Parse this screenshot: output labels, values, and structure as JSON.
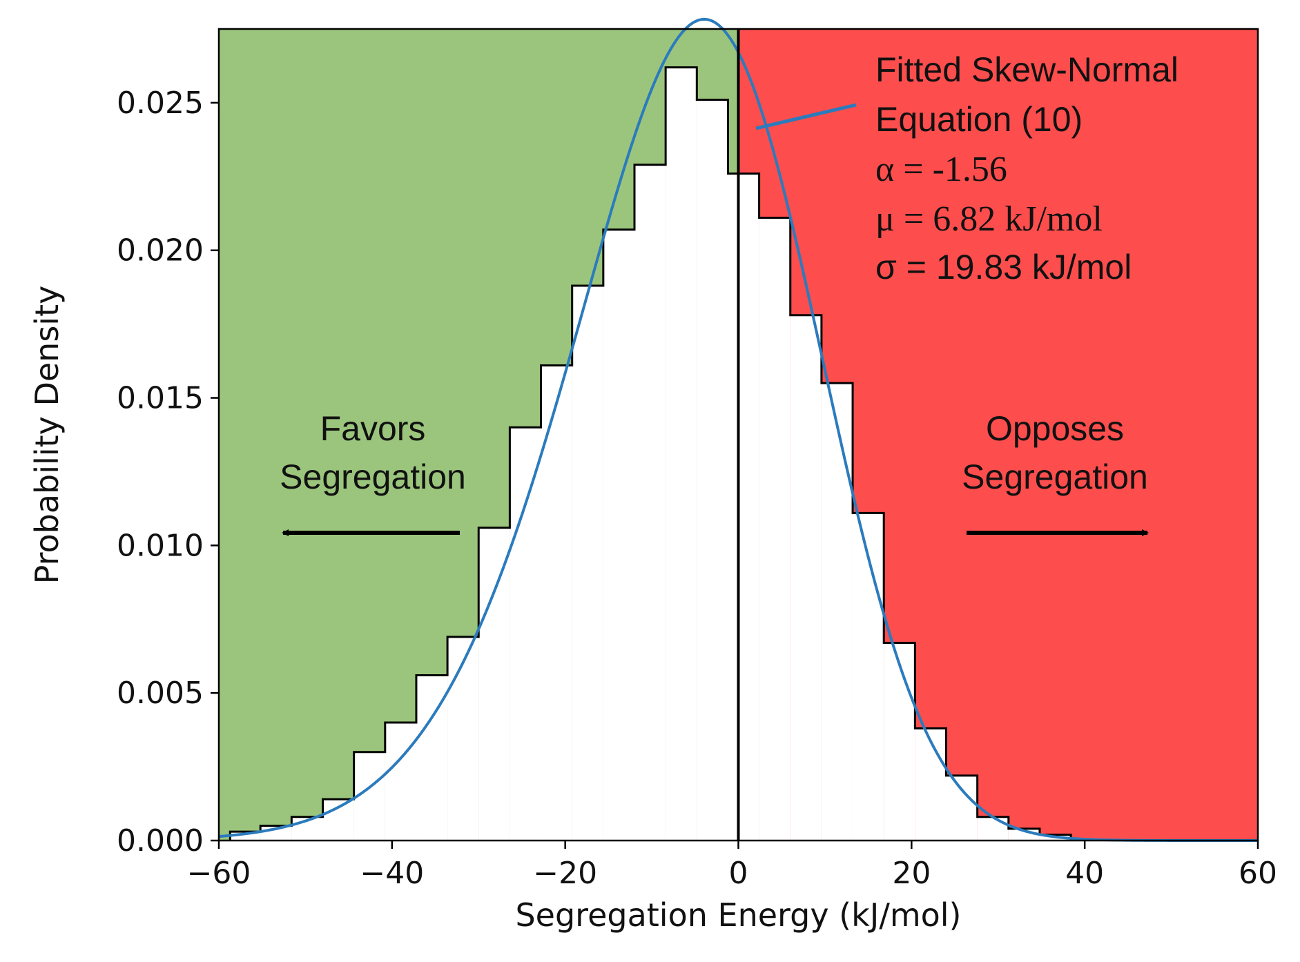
{
  "colors": {
    "favor_region": "#9bc57c",
    "oppose_region": "#fe4d4d",
    "curve": "#2b7bbd",
    "hist_fill": "#ffffff",
    "hist_edge": "#000000",
    "axis": "#000000"
  },
  "chart_data": {
    "type": "histogram",
    "title": "",
    "xlabel": "Segregation Energy (kJ/mol)",
    "ylabel": "Probability Density",
    "xlim": [
      -60,
      60
    ],
    "ylim": [
      0,
      0.0275
    ],
    "xticks": [
      -60,
      -40,
      -20,
      0,
      20,
      40,
      60
    ],
    "xtick_labels": [
      "−60",
      "−40",
      "−20",
      "0",
      "20",
      "40",
      "60"
    ],
    "yticks": [
      0.0,
      0.005,
      0.01,
      0.015,
      0.02,
      0.025
    ],
    "ytick_labels": [
      "0.000",
      "0.005",
      "0.010",
      "0.015",
      "0.020",
      "0.025"
    ],
    "histogram": {
      "bin_edges": [
        -58.7,
        -55.2,
        -51.6,
        -48.0,
        -44.4,
        -40.8,
        -37.2,
        -33.6,
        -30.0,
        -26.4,
        -22.8,
        -19.2,
        -15.6,
        -12.0,
        -8.4,
        -4.8,
        -1.2,
        2.4,
        6.0,
        9.6,
        13.2,
        16.8,
        20.4,
        24.0,
        27.6,
        31.2,
        34.8,
        38.4
      ],
      "densities": [
        0.0003,
        0.0005,
        0.0008,
        0.0014,
        0.003,
        0.004,
        0.0056,
        0.0069,
        0.0106,
        0.014,
        0.0161,
        0.0188,
        0.0207,
        0.0229,
        0.0262,
        0.0251,
        0.0226,
        0.0211,
        0.0178,
        0.0155,
        0.0111,
        0.0067,
        0.0038,
        0.0022,
        0.0008,
        0.0004,
        0.0002
      ]
    },
    "fit": {
      "name": "Fitted Skew-Normal",
      "equation_ref": "Equation (10)",
      "alpha": -1.56,
      "mu": 6.82,
      "sigma": 19.83,
      "units": "kJ/mol"
    },
    "regions": [
      {
        "name": "Favors Segregation",
        "x_range": [
          -60,
          0
        ]
      },
      {
        "name": "Opposes Segregation",
        "x_range": [
          0,
          60
        ]
      }
    ],
    "vertical_line_x": 0
  },
  "annotations": {
    "fit_line1": "Fitted Skew-Normal",
    "fit_line2": "Equation (10)",
    "alpha_text": "α = -1.56",
    "mu_text": "μ = 6.82 kJ/mol",
    "sigma_text": "σ = 19.83 kJ/mol",
    "favors_line1": "Favors",
    "favors_line2": "Segregation",
    "opposes_line1": "Opposes",
    "opposes_line2": "Segregation"
  }
}
